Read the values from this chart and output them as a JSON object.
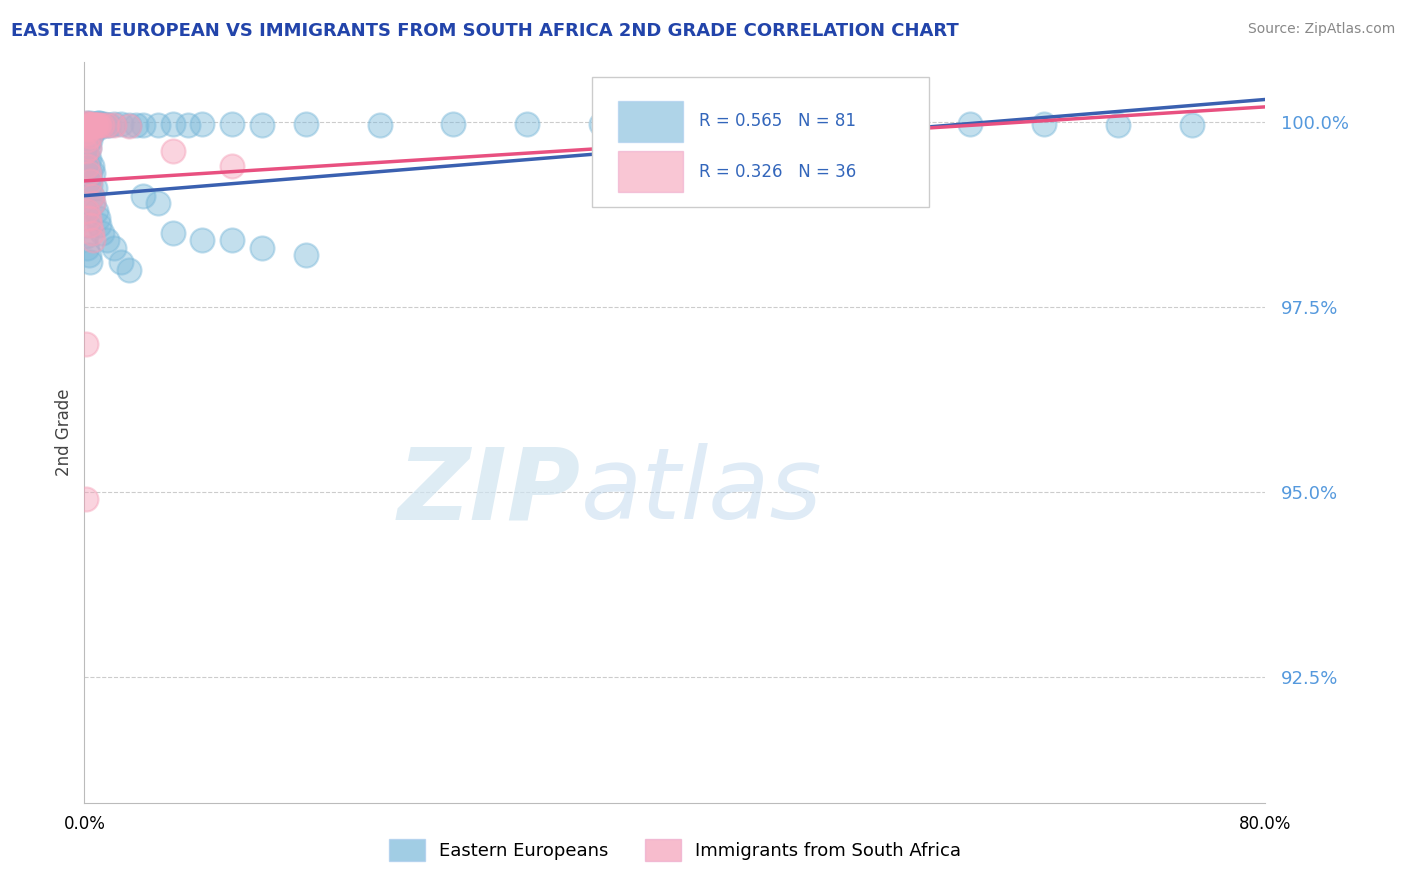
{
  "title": "EASTERN EUROPEAN VS IMMIGRANTS FROM SOUTH AFRICA 2ND GRADE CORRELATION CHART",
  "source": "Source: ZipAtlas.com",
  "ylabel": "2nd Grade",
  "ytick_labels": [
    "100.0%",
    "97.5%",
    "95.0%",
    "92.5%"
  ],
  "ytick_values": [
    1.0,
    0.975,
    0.95,
    0.925
  ],
  "xlim": [
    0.0,
    0.8
  ],
  "ylim": [
    0.908,
    1.008
  ],
  "legend_blue_R": "R = 0.565",
  "legend_blue_N": "N = 81",
  "legend_pink_R": "R = 0.326",
  "legend_pink_N": "N = 36",
  "legend_label_blue": "Eastern Europeans",
  "legend_label_pink": "Immigrants from South Africa",
  "blue_color": "#7ab8d9",
  "pink_color": "#f5a0b8",
  "blue_line_color": "#3a60b0",
  "pink_line_color": "#e85080",
  "blue_line": [
    [
      0.0,
      0.99
    ],
    [
      0.8,
      1.003
    ]
  ],
  "pink_line": [
    [
      0.0,
      0.992
    ],
    [
      0.8,
      1.002
    ]
  ],
  "blue_points_xy": [
    [
      0.001,
      0.9995
    ],
    [
      0.002,
      0.9998
    ],
    [
      0.003,
      0.9997
    ],
    [
      0.004,
      0.9998
    ],
    [
      0.005,
      0.9996
    ],
    [
      0.006,
      0.9995
    ],
    [
      0.007,
      0.9997
    ],
    [
      0.008,
      0.9996
    ],
    [
      0.009,
      0.9998
    ],
    [
      0.01,
      0.9998
    ],
    [
      0.011,
      0.9997
    ],
    [
      0.012,
      0.9996
    ],
    [
      0.013,
      0.9997
    ],
    [
      0.015,
      0.9996
    ],
    [
      0.017,
      0.9996
    ],
    [
      0.02,
      0.9997
    ],
    [
      0.025,
      0.9997
    ],
    [
      0.03,
      0.9996
    ],
    [
      0.035,
      0.9996
    ],
    [
      0.04,
      0.9995
    ],
    [
      0.05,
      0.9995
    ],
    [
      0.06,
      0.9997
    ],
    [
      0.07,
      0.9996
    ],
    [
      0.08,
      0.9997
    ],
    [
      0.1,
      0.9997
    ],
    [
      0.12,
      0.9996
    ],
    [
      0.15,
      0.9997
    ],
    [
      0.2,
      0.9996
    ],
    [
      0.25,
      0.9997
    ],
    [
      0.3,
      0.9997
    ],
    [
      0.35,
      0.9997
    ],
    [
      0.4,
      0.9997
    ],
    [
      0.45,
      0.9997
    ],
    [
      0.5,
      0.9997
    ],
    [
      0.55,
      0.9997
    ],
    [
      0.6,
      0.9997
    ],
    [
      0.65,
      0.9997
    ],
    [
      0.7,
      0.9996
    ],
    [
      0.75,
      0.9996
    ],
    [
      0.001,
      0.996
    ],
    [
      0.002,
      0.994
    ],
    [
      0.003,
      0.992
    ],
    [
      0.004,
      0.993
    ],
    [
      0.005,
      0.99
    ],
    [
      0.006,
      0.989
    ],
    [
      0.007,
      0.991
    ],
    [
      0.008,
      0.988
    ],
    [
      0.009,
      0.987
    ],
    [
      0.01,
      0.986
    ],
    [
      0.012,
      0.985
    ],
    [
      0.015,
      0.984
    ],
    [
      0.02,
      0.983
    ],
    [
      0.025,
      0.981
    ],
    [
      0.03,
      0.98
    ],
    [
      0.003,
      0.999
    ],
    [
      0.005,
      0.9985
    ],
    [
      0.007,
      0.9993
    ],
    [
      0.009,
      0.9991
    ],
    [
      0.001,
      0.998
    ],
    [
      0.002,
      0.997
    ],
    [
      0.004,
      0.9975
    ],
    [
      0.06,
      0.985
    ],
    [
      0.08,
      0.984
    ],
    [
      0.1,
      0.984
    ],
    [
      0.12,
      0.983
    ],
    [
      0.15,
      0.982
    ],
    [
      0.002,
      0.9945
    ],
    [
      0.003,
      0.9965
    ],
    [
      0.004,
      0.9915
    ],
    [
      0.001,
      0.988
    ],
    [
      0.002,
      0.986
    ],
    [
      0.001,
      0.9845
    ],
    [
      0.002,
      0.983
    ],
    [
      0.003,
      0.982
    ],
    [
      0.004,
      0.981
    ],
    [
      0.003,
      0.995
    ],
    [
      0.005,
      0.994
    ],
    [
      0.006,
      0.993
    ],
    [
      0.04,
      0.99
    ],
    [
      0.05,
      0.989
    ]
  ],
  "pink_points_xy": [
    [
      0.001,
      0.9998
    ],
    [
      0.002,
      0.9997
    ],
    [
      0.003,
      0.9996
    ],
    [
      0.004,
      0.9996
    ],
    [
      0.005,
      0.9997
    ],
    [
      0.006,
      0.9996
    ],
    [
      0.007,
      0.9995
    ],
    [
      0.008,
      0.9995
    ],
    [
      0.009,
      0.9996
    ],
    [
      0.01,
      0.9995
    ],
    [
      0.012,
      0.9996
    ],
    [
      0.015,
      0.9995
    ],
    [
      0.02,
      0.9995
    ],
    [
      0.03,
      0.9994
    ],
    [
      0.001,
      0.996
    ],
    [
      0.002,
      0.994
    ],
    [
      0.003,
      0.993
    ],
    [
      0.004,
      0.992
    ],
    [
      0.005,
      0.99
    ],
    [
      0.006,
      0.989
    ],
    [
      0.002,
      0.988
    ],
    [
      0.003,
      0.987
    ],
    [
      0.004,
      0.986
    ],
    [
      0.005,
      0.985
    ],
    [
      0.006,
      0.984
    ],
    [
      0.001,
      0.9985
    ],
    [
      0.002,
      0.9975
    ],
    [
      0.003,
      0.9965
    ],
    [
      0.001,
      0.999
    ],
    [
      0.002,
      0.9993
    ],
    [
      0.06,
      0.996
    ],
    [
      0.1,
      0.994
    ],
    [
      0.001,
      0.97
    ],
    [
      0.001,
      0.949
    ],
    [
      0.003,
      0.999
    ],
    [
      0.004,
      0.998
    ]
  ]
}
